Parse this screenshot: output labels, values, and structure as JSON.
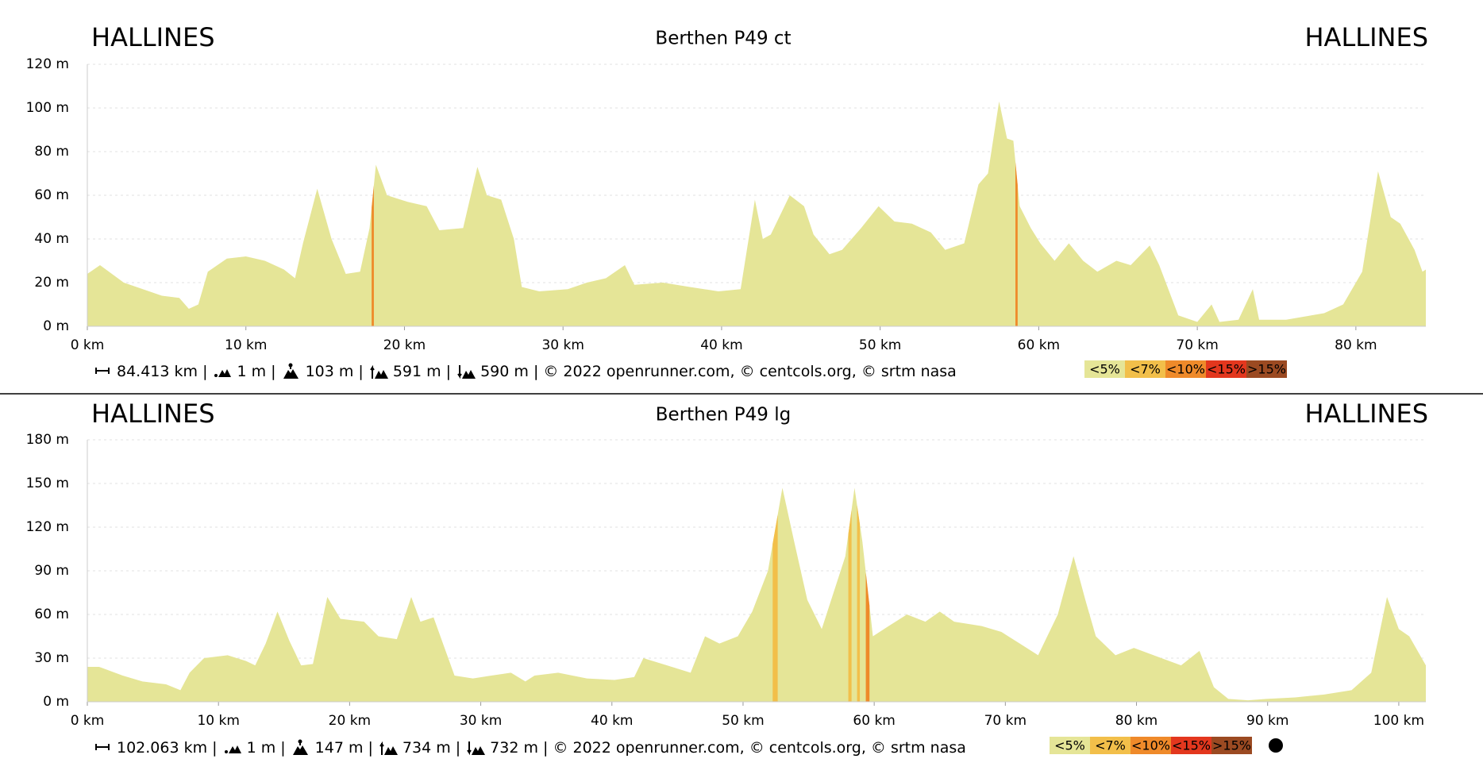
{
  "chart_data": [
    {
      "type": "area",
      "title": "Berthen P49 ct",
      "start_label": "HALLINES",
      "end_label": "HALLINES",
      "x": [
        0,
        0.8,
        2.3,
        3.5,
        4.7,
        5.8,
        6.4,
        7,
        7.6,
        8.8,
        10,
        11.2,
        12.4,
        13.1,
        13.6,
        14.5,
        15.4,
        16.3,
        17.2,
        17.8,
        18.2,
        18.9,
        20.2,
        21.4,
        22.2,
        23.7,
        24.6,
        25.2,
        26.1,
        26.9,
        27.4,
        28.5,
        30.3,
        31.5,
        32.7,
        33.9,
        34.5,
        36.3,
        38,
        39.8,
        41.2,
        42.1,
        42.6,
        43.1,
        44.3,
        45.2,
        45.8,
        46.8,
        47.6,
        48.8,
        49.9,
        50.9,
        52,
        53.2,
        54.1,
        55.3,
        56.2,
        56.8,
        57.5,
        58,
        58.4,
        58.8,
        59.5,
        60.1,
        61,
        61.9,
        62.8,
        63.7,
        64.9,
        65.8,
        67,
        67.6,
        68.8,
        70,
        70.9,
        71.4,
        72.6,
        73.5,
        73.9,
        75.6,
        78,
        79.2,
        80.4,
        81.4,
        82.2,
        82.8,
        83.7,
        84.2,
        84.413
      ],
      "values": [
        24,
        28,
        20,
        17,
        14,
        13,
        8,
        10,
        25,
        31,
        32,
        30,
        26,
        22,
        38,
        63,
        40,
        24,
        25,
        45,
        74,
        60,
        57,
        55,
        44,
        45,
        73,
        60,
        58,
        40,
        18,
        16,
        17,
        20,
        22,
        28,
        19,
        20,
        18,
        16,
        17,
        58,
        40,
        42,
        60,
        55,
        42,
        33,
        35,
        45,
        55,
        48,
        47,
        43,
        35,
        38,
        65,
        70,
        103,
        86,
        85,
        55,
        45,
        38,
        30,
        38,
        30,
        25,
        30,
        28,
        37,
        28,
        5,
        2,
        10,
        2,
        3,
        17,
        3,
        3,
        6,
        10,
        25,
        71,
        50,
        47,
        35,
        25,
        26
      ],
      "color": "#e5e597",
      "xlim": [
        0,
        84.413
      ],
      "xticks": [
        {
          "value": 0,
          "label": "0 km"
        },
        {
          "value": 10,
          "label": "10 km"
        },
        {
          "value": 20,
          "label": "20 km"
        },
        {
          "value": 30,
          "label": "30 km"
        },
        {
          "value": 40,
          "label": "40 km"
        },
        {
          "value": 50,
          "label": "50 km"
        },
        {
          "value": 60,
          "label": "60 km"
        },
        {
          "value": 70,
          "label": "70 km"
        },
        {
          "value": 80,
          "label": "80 km"
        }
      ],
      "ylim": [
        0,
        120
      ],
      "yticks": [
        {
          "value": 0,
          "label": "0 m"
        },
        {
          "value": 20,
          "label": "20 m"
        },
        {
          "value": 40,
          "label": "40 m"
        },
        {
          "value": 60,
          "label": "60 m"
        },
        {
          "value": 80,
          "label": "80 m"
        },
        {
          "value": 100,
          "label": "100 m"
        },
        {
          "value": 120,
          "label": "120 m"
        }
      ],
      "grid": true,
      "grade_legend": [
        {
          "value": 5,
          "label": "<5%",
          "color": "#e5e597"
        },
        {
          "value": 7,
          "label": "<7%",
          "color": "#f2bf4a"
        },
        {
          "value": 10,
          "label": "<10%",
          "color": "#ef8a2a"
        },
        {
          "value": 15,
          "label": "<15%",
          "color": "#e3371e"
        },
        {
          "value": 15,
          "label": ">15%",
          "color": "#9b4a22"
        }
      ],
      "stats": [
        "84.413 km |",
        "1 m |",
        "103 m |",
        "591 m |",
        "590 m | © 2022 openrunner.com, © centcols.org, © srtm nasa"
      ]
    },
    {
      "type": "area",
      "title": "Berthen P49 lg",
      "start_label": "HALLINES",
      "end_label": "HALLINES",
      "x": [
        0,
        0.9,
        2.7,
        4.2,
        6,
        7.1,
        7.8,
        8.9,
        10.7,
        12.1,
        12.8,
        13.6,
        14.5,
        15.4,
        16.3,
        17.2,
        18.3,
        19.3,
        21.1,
        22.2,
        23.6,
        24.7,
        25.4,
        26.4,
        27.2,
        28,
        29.4,
        30.8,
        32.3,
        33.4,
        34.1,
        35.9,
        38.1,
        40.2,
        41.7,
        42.4,
        44.2,
        46,
        47.1,
        48.2,
        49.6,
        50.7,
        51.9,
        53,
        53.9,
        54.9,
        56,
        56.9,
        57.8,
        58.5,
        59.1,
        59.9,
        61.1,
        62.5,
        63.9,
        65,
        66.1,
        68.2,
        69.7,
        71.1,
        72.5,
        74,
        75.2,
        76.1,
        76.9,
        78.4,
        79.8,
        81.9,
        83.4,
        84.8,
        85.9,
        87,
        88.5,
        89.9,
        92.1,
        94.3,
        96.4,
        97.9,
        99.1,
        100,
        100.8,
        102.063
      ],
      "values": [
        24,
        24,
        18,
        14,
        12,
        8,
        20,
        30,
        32,
        28,
        25,
        40,
        62,
        42,
        25,
        26,
        72,
        57,
        55,
        45,
        43,
        72,
        55,
        58,
        38,
        18,
        16,
        18,
        20,
        14,
        18,
        20,
        16,
        15,
        17,
        30,
        25,
        20,
        45,
        40,
        45,
        62,
        90,
        147,
        110,
        70,
        50,
        75,
        100,
        147,
        110,
        45,
        52,
        60,
        55,
        62,
        55,
        52,
        48,
        40,
        32,
        60,
        100,
        70,
        45,
        32,
        37,
        30,
        25,
        35,
        10,
        2,
        1,
        2,
        3,
        5,
        8,
        20,
        72,
        50,
        45,
        25
      ],
      "color": "#e5e597",
      "xlim": [
        0,
        102.063
      ],
      "xticks": [
        {
          "value": 0,
          "label": "0 km"
        },
        {
          "value": 10,
          "label": "10 km"
        },
        {
          "value": 20,
          "label": "20 km"
        },
        {
          "value": 30,
          "label": "30 km"
        },
        {
          "value": 40,
          "label": "40 km"
        },
        {
          "value": 50,
          "label": "50 km"
        },
        {
          "value": 60,
          "label": "60 km"
        },
        {
          "value": 70,
          "label": "70 km"
        },
        {
          "value": 80,
          "label": "80 km"
        },
        {
          "value": 90,
          "label": "90 km"
        },
        {
          "value": 100,
          "label": "100 km"
        }
      ],
      "ylim": [
        0,
        180
      ],
      "yticks": [
        {
          "value": 0,
          "label": "0 m"
        },
        {
          "value": 30,
          "label": "30 m"
        },
        {
          "value": 60,
          "label": "60 m"
        },
        {
          "value": 90,
          "label": "90 m"
        },
        {
          "value": 120,
          "label": "120 m"
        },
        {
          "value": 150,
          "label": "150 m"
        },
        {
          "value": 180,
          "label": "180 m"
        }
      ],
      "grid": true,
      "grade_legend": [
        {
          "value": 5,
          "label": "<5%",
          "color": "#e5e597"
        },
        {
          "value": 7,
          "label": "<7%",
          "color": "#f2bf4a"
        },
        {
          "value": 10,
          "label": "<10%",
          "color": "#ef8a2a"
        },
        {
          "value": 15,
          "label": "<15%",
          "color": "#e3371e"
        },
        {
          "value": 15,
          "label": ">15%",
          "color": "#9b4a22"
        }
      ],
      "stats": [
        "102.063 km |",
        "1 m |",
        "147 m |",
        "734 m |",
        "732 m | © 2022 openrunner.com, © centcols.org, © srtm nasa"
      ]
    }
  ]
}
